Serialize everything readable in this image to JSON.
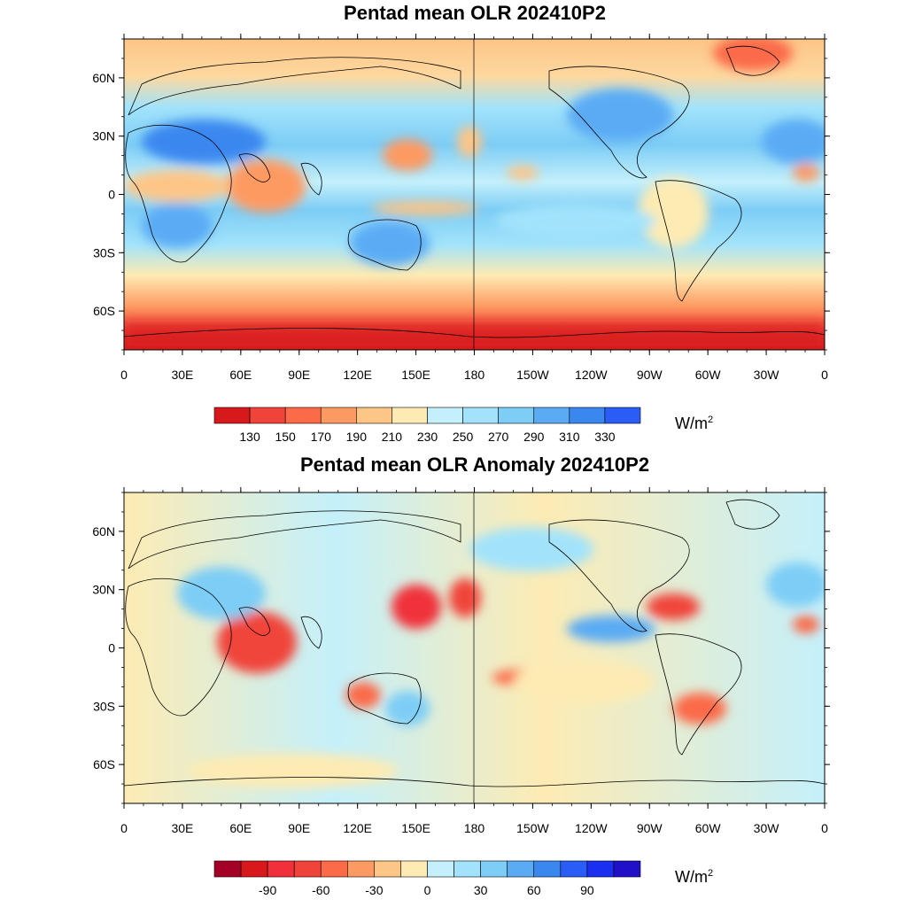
{
  "panels": [
    {
      "title": "Pentad mean OLR 202410P2",
      "colorbar": {
        "colors": [
          "#d7191c",
          "#f0443a",
          "#fb6b48",
          "#fd9a62",
          "#fdc586",
          "#fdebb3",
          "#c4f0fb",
          "#a2e3fb",
          "#7dcdf6",
          "#5aabf4",
          "#3a87f0",
          "#2a5df5"
        ],
        "labels": [
          "130",
          "150",
          "170",
          "190",
          "210",
          "230",
          "250",
          "270",
          "290",
          "310",
          "330"
        ],
        "unit_base": "W/m",
        "unit_exp": "2"
      }
    },
    {
      "title": "Pentad mean OLR Anomaly 202410P2",
      "colorbar": {
        "colors": [
          "#a50026",
          "#d7191c",
          "#f0303a",
          "#f0443a",
          "#fb6b48",
          "#fd9a62",
          "#fdc586",
          "#fdebb3",
          "#c4f0fb",
          "#a2e3fb",
          "#7dcdf6",
          "#5aabf4",
          "#3a87f0",
          "#2a5df5",
          "#1b2ff0",
          "#2010c8"
        ],
        "labels": [
          "-90",
          "-60",
          "-30",
          "0",
          "30",
          "60",
          "90"
        ],
        "unit_base": "W/m",
        "unit_exp": "2"
      }
    }
  ],
  "axes": {
    "x_ticks": [
      "0",
      "30E",
      "60E",
      "90E",
      "120E",
      "150E",
      "180",
      "150W",
      "120W",
      "90W",
      "60W",
      "30W",
      "0"
    ],
    "y_ticks": [
      "60N",
      "30N",
      "0",
      "30S",
      "60S"
    ]
  }
}
